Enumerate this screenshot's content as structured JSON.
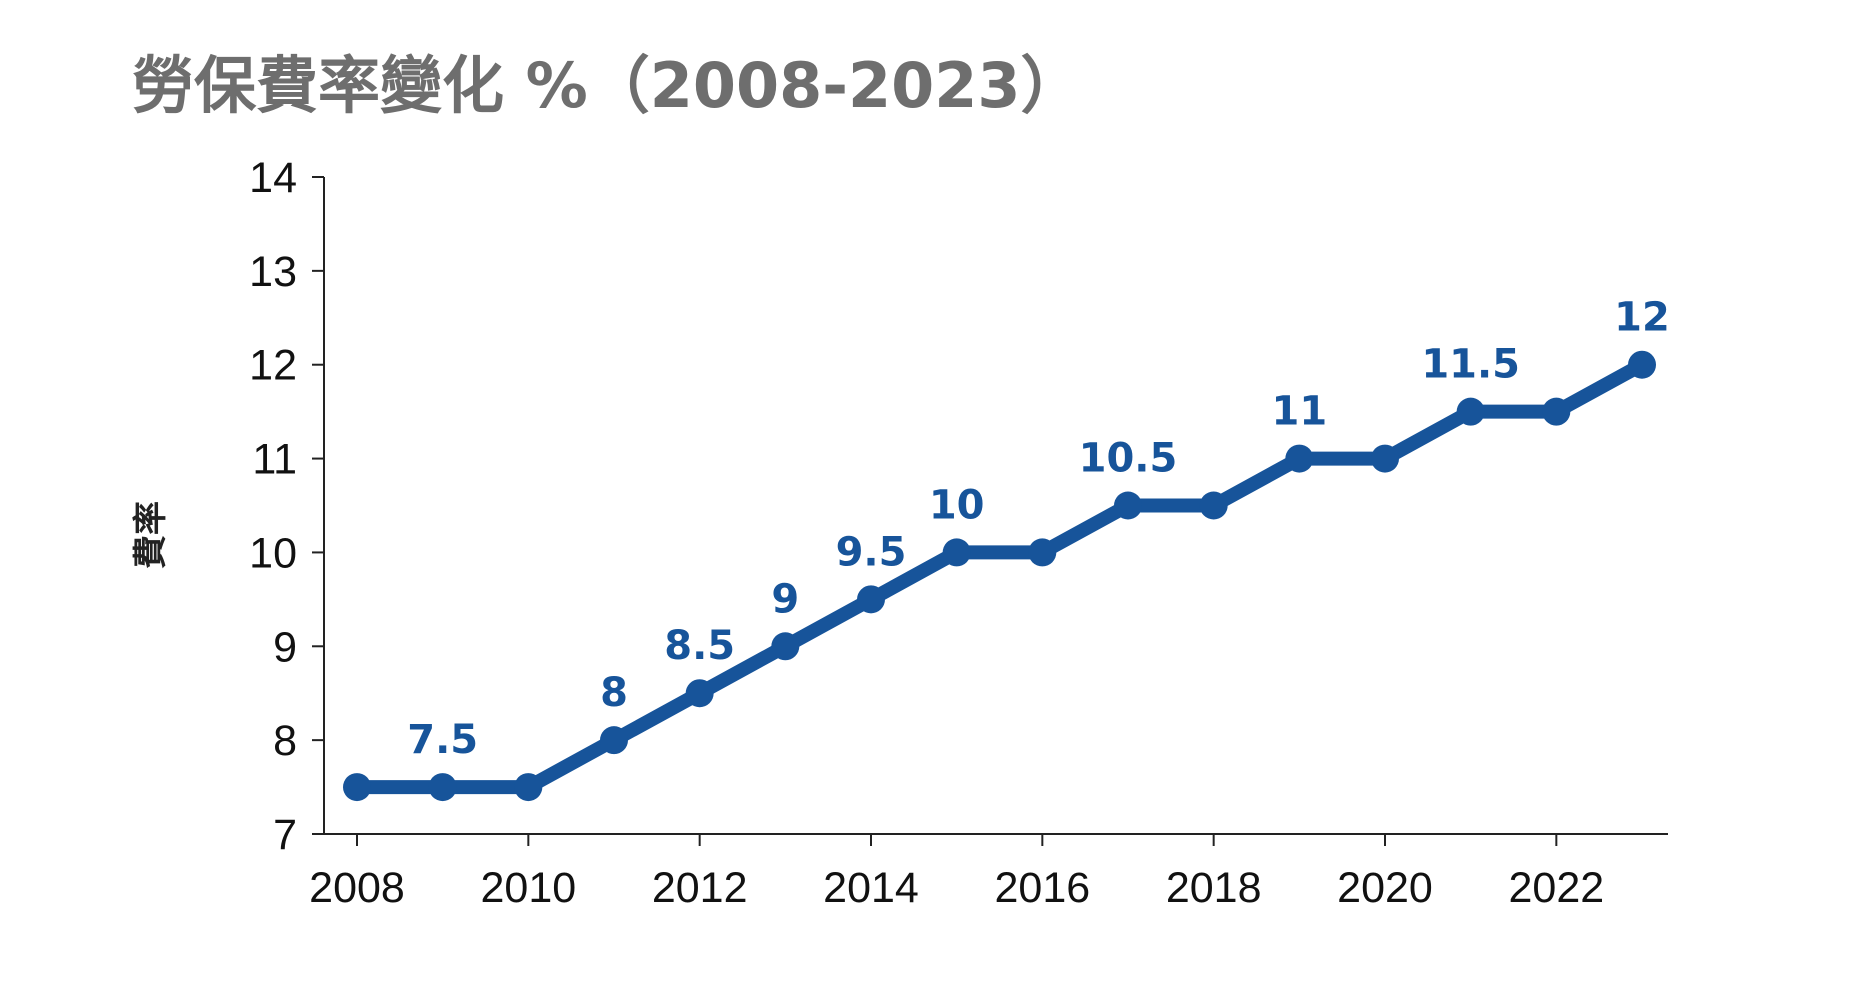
{
  "chart_data": {
    "type": "line",
    "title": "勞保費率變化 %（2008-2023）",
    "xlabel": "",
    "ylabel": "費率",
    "x": [
      2008,
      2009,
      2010,
      2011,
      2012,
      2013,
      2014,
      2015,
      2016,
      2017,
      2018,
      2019,
      2020,
      2021,
      2022,
      2023
    ],
    "series": [
      {
        "values": [
          7.5,
          7.5,
          7.5,
          8,
          8.5,
          9,
          9.5,
          10,
          10,
          10.5,
          10.5,
          11,
          11,
          11.5,
          11.5,
          12
        ]
      }
    ],
    "data_labels": [
      {
        "year": 2009,
        "text": "7.5"
      },
      {
        "year": 2011,
        "text": "8"
      },
      {
        "year": 2012,
        "text": "8.5"
      },
      {
        "year": 2013,
        "text": "9"
      },
      {
        "year": 2014,
        "text": "9.5"
      },
      {
        "year": 2015,
        "text": "10"
      },
      {
        "year": 2017,
        "text": "10.5"
      },
      {
        "year": 2019,
        "text": "11"
      },
      {
        "year": 2021,
        "text": "11.5"
      },
      {
        "year": 2023,
        "text": "12"
      }
    ],
    "x_ticks": [
      "2008",
      "2010",
      "2012",
      "2014",
      "2016",
      "2018",
      "2020",
      "2022"
    ],
    "y_ticks": [
      "7",
      "8",
      "9",
      "10",
      "11",
      "12",
      "13",
      "14"
    ],
    "xlim": [
      2008,
      2023
    ],
    "ylim": [
      7,
      14
    ],
    "grid": false,
    "legend": "none",
    "colors": {
      "line": "#17549a",
      "label": "#17549a",
      "title": "#6e6e6e"
    }
  }
}
